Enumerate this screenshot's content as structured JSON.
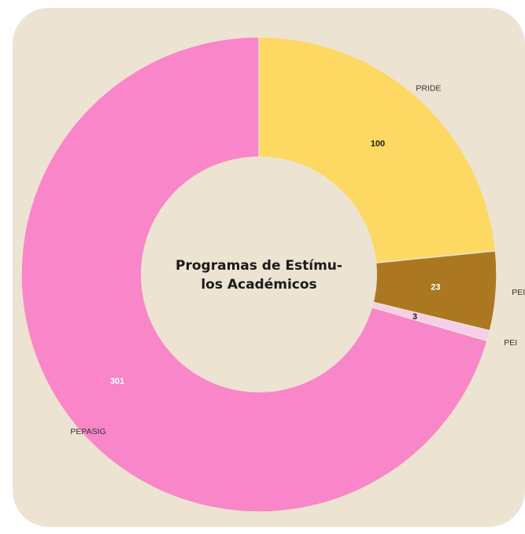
{
  "chart_data": {
    "type": "pie",
    "donut": true,
    "title_lines": [
      "Programas de Estímu-",
      "los Académicos"
    ],
    "slices": [
      {
        "label": "PRIDE",
        "value": 100,
        "color": "#fdd862",
        "value_color": "#1a1a1a"
      },
      {
        "label": "PEI",
        "value": 23,
        "color": "#ab7821",
        "value_color": "#ffffff"
      },
      {
        "label": "PEI",
        "value": 3,
        "color": "#f8cdea",
        "value_color": "#1a1a1a"
      },
      {
        "label": "PEPASIG",
        "value": 301,
        "color": "#f986c8",
        "value_color": "#ffffff"
      }
    ],
    "background_color": "#ede3d2"
  }
}
